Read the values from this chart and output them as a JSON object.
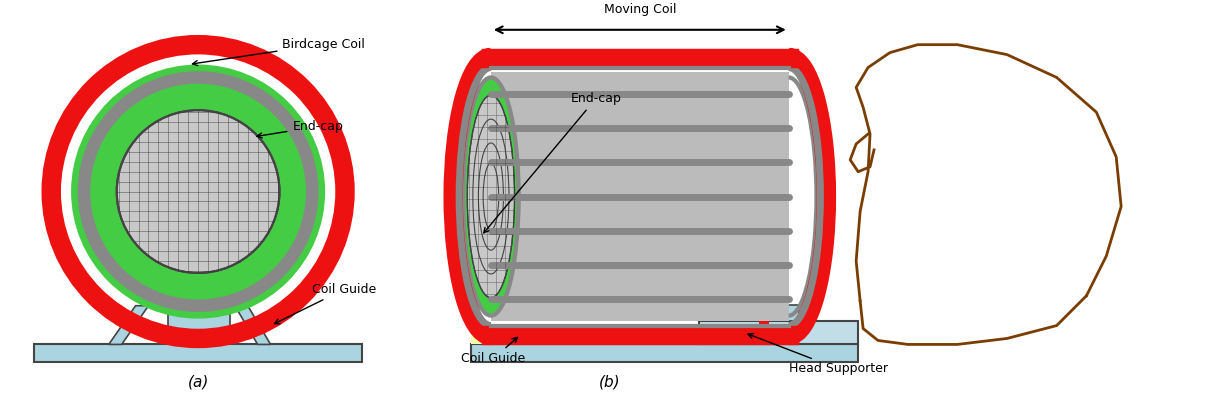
{
  "bg_color": "#ffffff",
  "fig_width": 12.22,
  "fig_height": 4.0,
  "label_a": "(a)",
  "label_b": "(b)",
  "labels": {
    "birdcage_coil": "Birdcage Coil",
    "end_cap": "End-cap",
    "coil_guide": "Coil Guide",
    "moving_coil": "Moving Coil",
    "head_supporter": "Head Supporter"
  },
  "colors": {
    "red": "#ee1111",
    "green": "#44cc44",
    "gray": "#888888",
    "gray_light": "#bbbbbb",
    "light_blue": "#aad4e0",
    "light_blue2": "#c0dde8",
    "dark_gray": "#444444",
    "white": "#ffffff",
    "black": "#000000",
    "grid_color": "#333333",
    "brown": "#7a3d00",
    "yellow": "#ffffaa",
    "grid_bg": "#c8c8c8"
  }
}
